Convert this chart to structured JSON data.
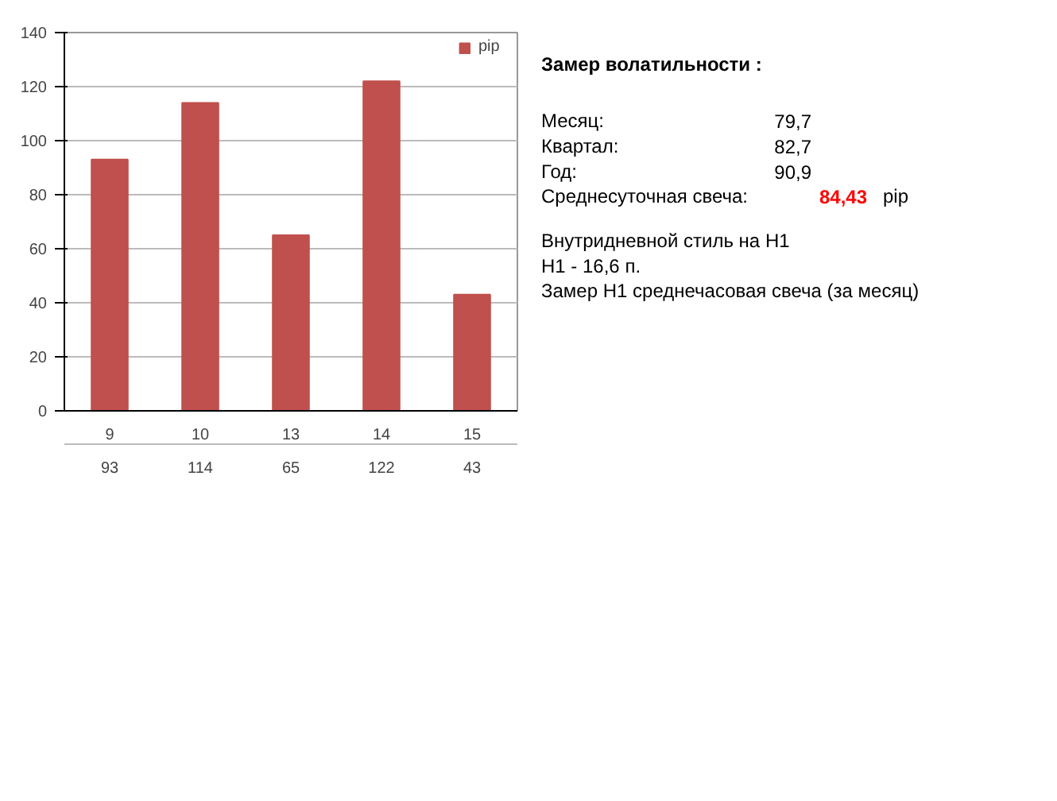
{
  "chart_data": [
    {
      "type": "bar",
      "categories": [
        "9",
        "10",
        "13",
        "14",
        "15"
      ],
      "series": [
        {
          "name": "pip",
          "color": "#c0504d",
          "values": [
            93,
            114,
            65,
            122,
            43
          ]
        }
      ],
      "ylim": [
        0,
        140
      ],
      "yticks": [
        0,
        20,
        40,
        60,
        80,
        100,
        120,
        140
      ],
      "grid": "y",
      "legend": "top right",
      "data_labels": true
    },
    {
      "type": "other",
      "annotations": [
        "Замер  волатильности  :",
        "Месяц:",
        "79,7",
        "Квартал:",
        "82,7",
        "Год:",
        "90,9",
        "Среднесуточная свеча:",
        "84,43",
        "pip",
        "Внутридневной стиль на H1",
        "H1 - 16,6 п.",
        "Замер H1 среднечасовая свеча (за месяц)"
      ]
    }
  ]
}
